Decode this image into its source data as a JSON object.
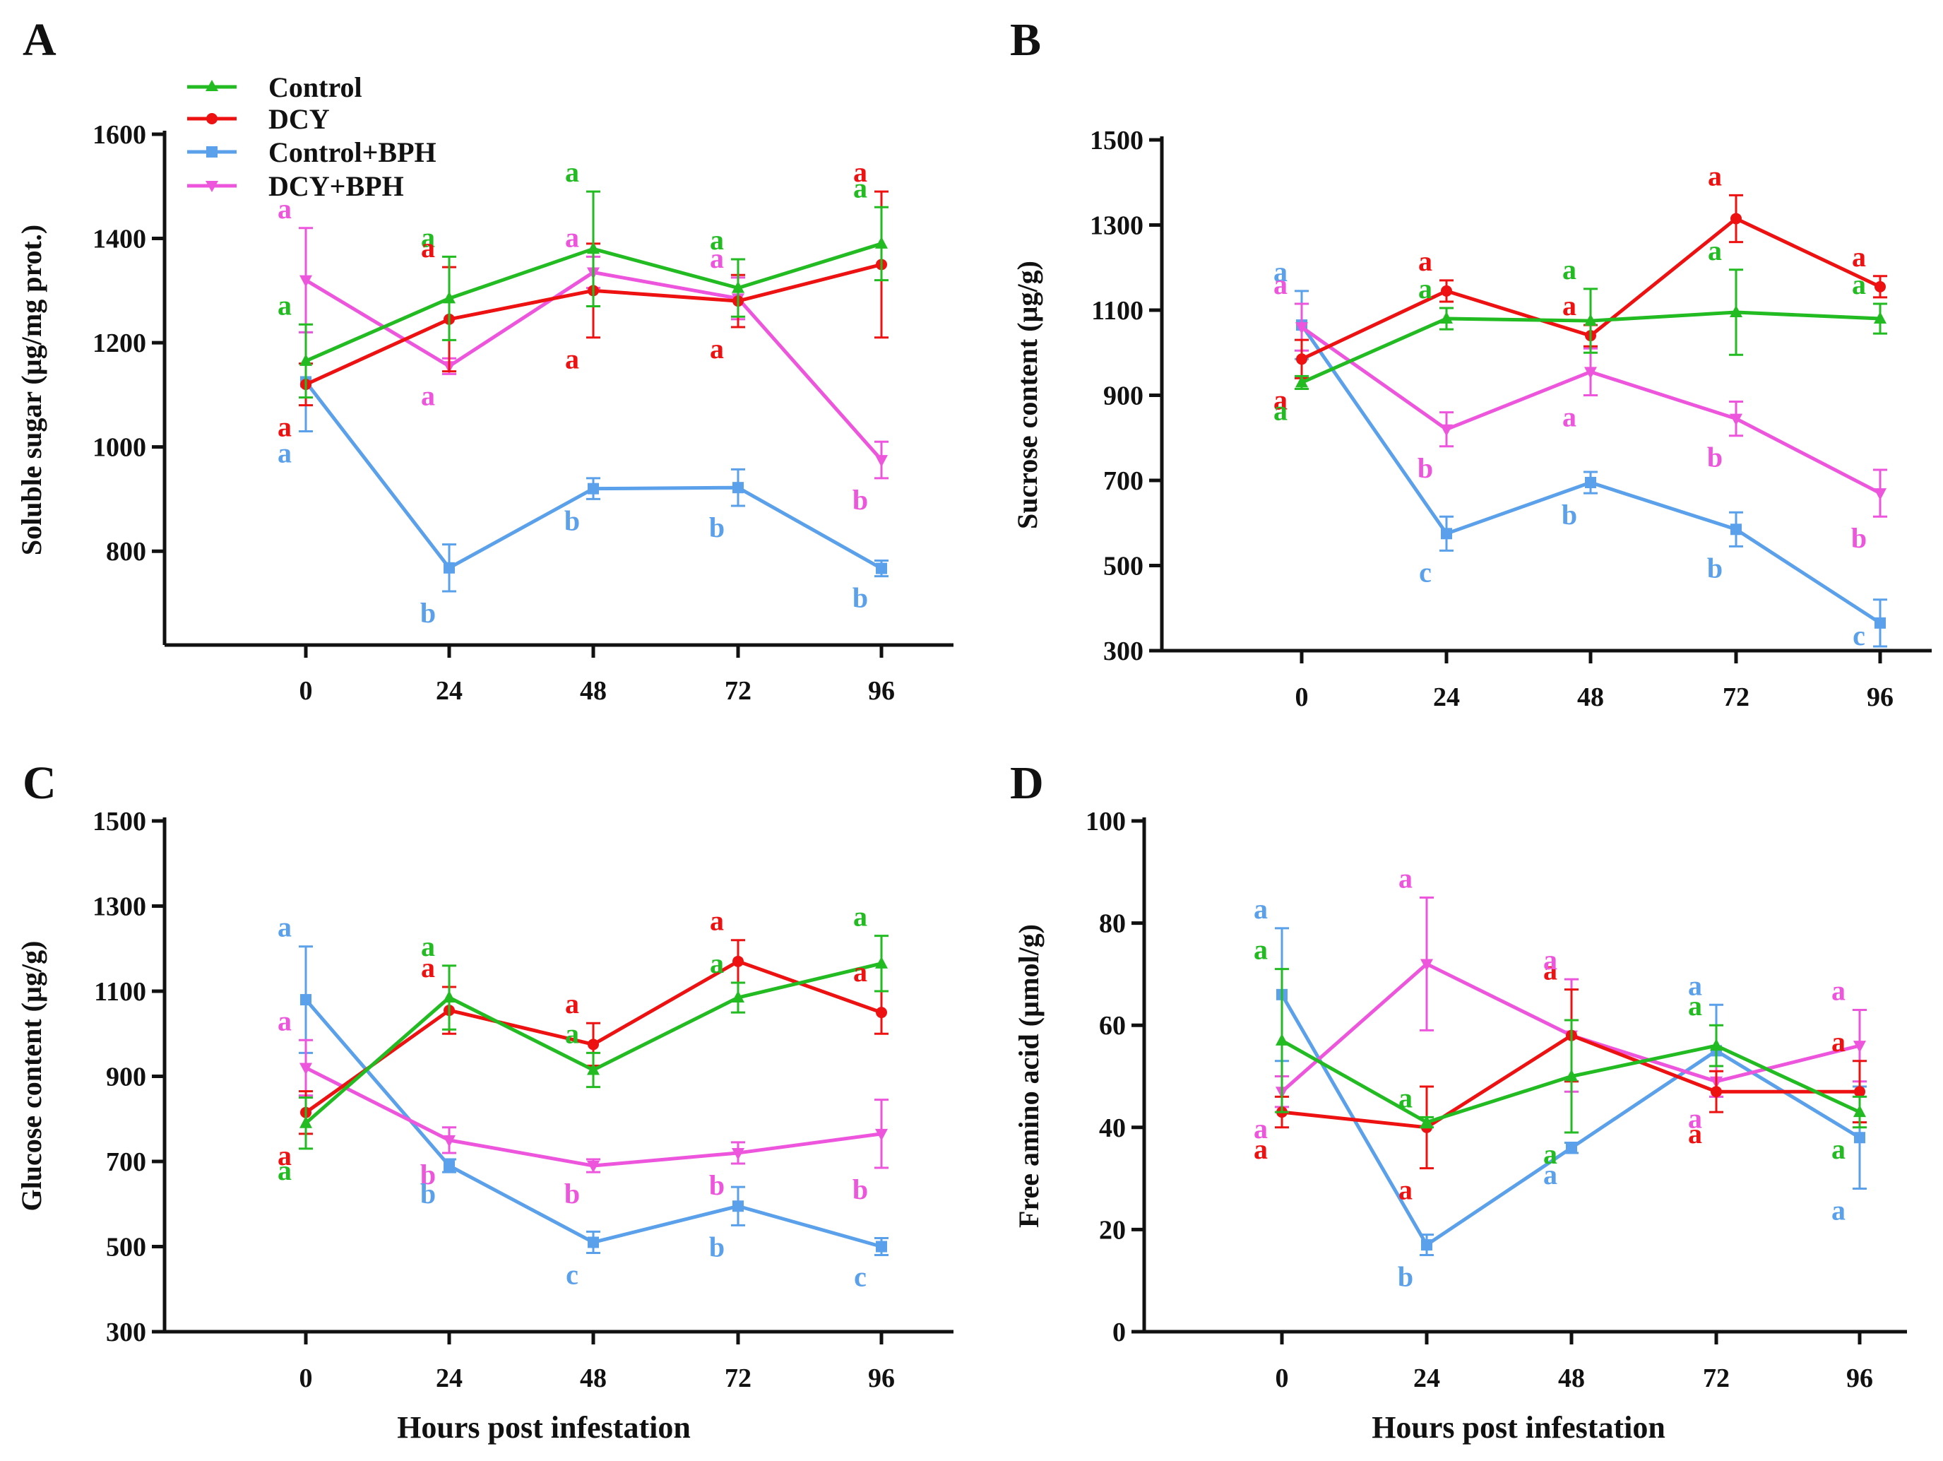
{
  "colors": {
    "Control": "#22bb22",
    "DCY": "#ee1111",
    "Control+BPH": "#5aa0ea",
    "DCY+BPH": "#ee55dd",
    "axis": "#111111"
  },
  "legend": [
    "Control",
    "DCY",
    "Control+BPH",
    "DCY+BPH"
  ],
  "xlabel": "Hours post infestation",
  "chart_data": [
    {
      "type": "line",
      "panel": "A",
      "title": "",
      "ylabel": "Soluble sugar (µg/mg prot.)",
      "xlabel": "",
      "ylim": [
        620,
        1600
      ],
      "yticks": [
        800,
        1000,
        1200,
        1400,
        1600
      ],
      "x": [
        0,
        24,
        48,
        72,
        96
      ],
      "series": [
        {
          "name": "Control",
          "values": [
            1165,
            1285,
            1380,
            1305,
            1390
          ],
          "errors": [
            70,
            80,
            110,
            55,
            70
          ],
          "letters": [
            "a",
            "a",
            "a",
            "a",
            "a"
          ]
        },
        {
          "name": "DCY",
          "values": [
            1120,
            1245,
            1300,
            1280,
            1350
          ],
          "errors": [
            40,
            100,
            90,
            50,
            140
          ],
          "letters": [
            "a",
            "a",
            "a",
            "a",
            "a"
          ]
        },
        {
          "name": "Control+BPH",
          "values": [
            1125,
            768,
            920,
            922,
            767
          ],
          "errors": [
            95,
            45,
            20,
            35,
            15
          ],
          "letters": [
            "a",
            "b",
            "b",
            "b",
            "b"
          ]
        },
        {
          "name": "DCY+BPH",
          "values": [
            1320,
            1155,
            1335,
            1285,
            975
          ],
          "errors": [
            100,
            15,
            30,
            40,
            35
          ],
          "letters": [
            "a",
            "a",
            "a",
            "a",
            "b"
          ]
        }
      ]
    },
    {
      "type": "line",
      "panel": "B",
      "title": "",
      "ylabel": "Sucrose content (µg/g)",
      "xlabel": "",
      "ylim": [
        300,
        1500
      ],
      "yticks": [
        300,
        500,
        700,
        900,
        1100,
        1300,
        1500
      ],
      "x": [
        0,
        24,
        48,
        72,
        96
      ],
      "series": [
        {
          "name": "Control",
          "values": [
            930,
            1080,
            1075,
            1095,
            1080
          ],
          "errors": [
            15,
            25,
            75,
            100,
            35
          ],
          "letters": [
            "a",
            "a",
            "a",
            "a",
            "a"
          ]
        },
        {
          "name": "DCY",
          "values": [
            985,
            1145,
            1040,
            1315,
            1155
          ],
          "errors": [
            45,
            25,
            25,
            55,
            25
          ],
          "letters": [
            "a",
            "a",
            "a",
            "a",
            "a"
          ]
        },
        {
          "name": "Control+BPH",
          "values": [
            1065,
            575,
            695,
            585,
            365
          ],
          "errors": [
            80,
            40,
            25,
            40,
            55
          ],
          "letters": [
            "a",
            "c",
            "b",
            "b",
            "c"
          ]
        },
        {
          "name": "DCY+BPH",
          "values": [
            1060,
            820,
            955,
            845,
            670
          ],
          "errors": [
            55,
            40,
            55,
            40,
            55
          ],
          "letters": [
            "a",
            "b",
            "a",
            "b",
            "b"
          ]
        }
      ]
    },
    {
      "type": "line",
      "panel": "C",
      "title": "",
      "ylabel": "Glucose content (µg/g)",
      "xlabel": "Hours post infestation",
      "ylim": [
        300,
        1500
      ],
      "yticks": [
        300,
        500,
        700,
        900,
        1100,
        1300,
        1500
      ],
      "x": [
        0,
        24,
        48,
        72,
        96
      ],
      "series": [
        {
          "name": "Control",
          "values": [
            790,
            1085,
            915,
            1085,
            1165
          ],
          "errors": [
            60,
            75,
            40,
            35,
            65
          ],
          "letters": [
            "a",
            "a",
            "a",
            "a",
            "a"
          ]
        },
        {
          "name": "DCY",
          "values": [
            815,
            1055,
            975,
            1170,
            1050
          ],
          "errors": [
            50,
            55,
            50,
            50,
            50
          ],
          "letters": [
            "a",
            "a",
            "a",
            "a",
            "a"
          ]
        },
        {
          "name": "Control+BPH",
          "values": [
            1080,
            690,
            510,
            595,
            500
          ],
          "errors": [
            125,
            15,
            25,
            45,
            20
          ],
          "letters": [
            "a",
            "b",
            "c",
            "b",
            "c"
          ]
        },
        {
          "name": "DCY+BPH",
          "values": [
            920,
            750,
            690,
            720,
            765
          ],
          "errors": [
            65,
            30,
            15,
            25,
            80
          ],
          "letters": [
            "a",
            "b",
            "b",
            "b",
            "b"
          ]
        }
      ]
    },
    {
      "type": "line",
      "panel": "D",
      "title": "",
      "ylabel": "Free amino acid (µmol/g)",
      "xlabel": "Hours post infestation",
      "ylim": [
        0,
        100
      ],
      "yticks": [
        0,
        20,
        40,
        60,
        80,
        100
      ],
      "x": [
        0,
        24,
        48,
        72,
        96
      ],
      "series": [
        {
          "name": "Control",
          "values": [
            57,
            41,
            50,
            56,
            43
          ],
          "errors": [
            14,
            1,
            11,
            4,
            3
          ],
          "letters": [
            "a",
            "a",
            "a",
            "a",
            "a"
          ]
        },
        {
          "name": "DCY",
          "values": [
            43,
            40,
            58,
            47,
            47
          ],
          "errors": [
            3,
            8,
            9,
            4,
            6
          ],
          "letters": [
            "a",
            "a",
            "a",
            "a",
            "a"
          ]
        },
        {
          "name": "Control+BPH",
          "values": [
            66,
            17,
            36,
            55,
            38
          ],
          "errors": [
            13,
            2,
            1,
            9,
            10
          ],
          "letters": [
            "a",
            "b",
            "a",
            "a",
            "a"
          ]
        },
        {
          "name": "DCY+BPH",
          "values": [
            47,
            72,
            58,
            49,
            56
          ],
          "errors": [
            3,
            13,
            11,
            3,
            7
          ],
          "letters": [
            "a",
            "a",
            "a",
            "a",
            "a"
          ]
        }
      ]
    }
  ],
  "panels": [
    {
      "label": "A",
      "ylabel": "Soluble sugar (µg/mg prot.)",
      "tick_labels": [
        "800",
        "1000",
        "1200",
        "1400",
        "1600"
      ],
      "x_tick_labels": [
        "0",
        "24",
        "48",
        "72",
        "96"
      ]
    },
    {
      "label": "B",
      "ylabel": "Sucrose content (µg/g)",
      "tick_labels": [
        "300",
        "500",
        "700",
        "900",
        "1100",
        "1300",
        "1500"
      ],
      "x_tick_labels": [
        "0",
        "24",
        "48",
        "72",
        "96"
      ]
    },
    {
      "label": "C",
      "ylabel": "Glucose content (µg/g)",
      "tick_labels": [
        "300",
        "500",
        "700",
        "900",
        "1100",
        "1300",
        "1500"
      ],
      "x_tick_labels": [
        "0",
        "24",
        "48",
        "72",
        "96"
      ]
    },
    {
      "label": "D",
      "ylabel": "Free amino acid (µmol/g)",
      "tick_labels": [
        "0",
        "20",
        "40",
        "60",
        "80",
        "100"
      ],
      "x_tick_labels": [
        "0",
        "24",
        "48",
        "72",
        "96"
      ]
    }
  ]
}
